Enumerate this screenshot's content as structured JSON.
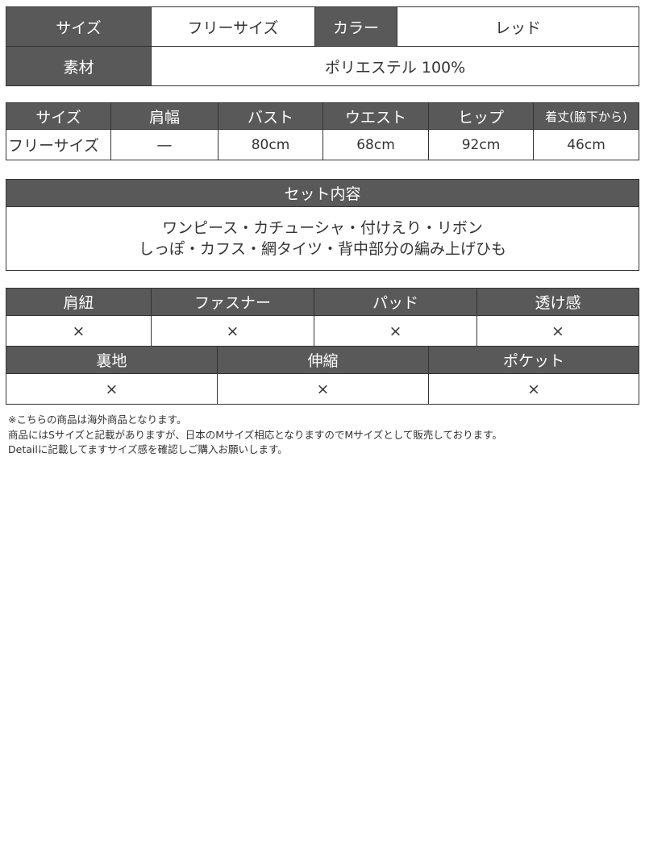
{
  "basic": {
    "size_label": "サイズ",
    "size_value": "フリーサイズ",
    "color_label": "カラー",
    "color_value": "レッド",
    "material_label": "素材",
    "material_value": "ポリエステル 100%"
  },
  "measurements": {
    "headers": [
      "サイズ",
      "肩幅",
      "バスト",
      "ウエスト",
      "ヒップ",
      "着丈(脇下から)"
    ],
    "values": [
      "フリーサイズ",
      "—",
      "80cm",
      "68cm",
      "92cm",
      "46cm"
    ]
  },
  "set_contents": {
    "header": "セット内容",
    "lines": [
      "ワンピース・カチューシャ・付けえり・リボン",
      "しっぽ・カフス・網タイツ・背中部分の編み上げひも"
    ]
  },
  "features_row1": {
    "headers": [
      "肩紐",
      "ファスナー",
      "パッド",
      "透け感"
    ],
    "values": [
      "×",
      "×",
      "×",
      "×"
    ]
  },
  "features_row2": {
    "headers": [
      "裏地",
      "伸縮",
      "ポケット"
    ],
    "values": [
      "×",
      "×",
      "×"
    ]
  },
  "notes": [
    "※こちらの商品は海外商品となります。",
    "商品にはSサイズと記載がありますが、日本のMサイズ相応となりますのでMサイズとして販売しております。",
    "Detailに記載してますサイズ感を確認しご購入お願いします。"
  ],
  "colors": {
    "header_bg": "#595959",
    "border": "#333333"
  }
}
